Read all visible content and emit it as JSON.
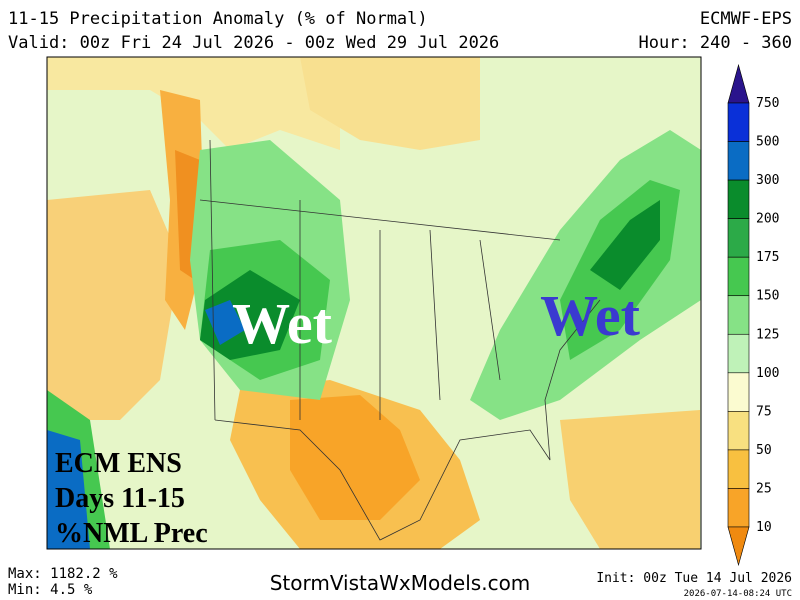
{
  "header": {
    "title": "11-15 Precipitation Anomaly (% of Normal)",
    "model": "ECMWF-EPS",
    "valid": "Valid: 00z Fri 24 Jul 2026 - 00z Wed 29 Jul 2026",
    "hour": "Hour: 240 - 360"
  },
  "legend": {
    "labels": [
      750,
      500,
      300,
      200,
      175,
      150,
      125,
      100,
      75,
      50,
      25,
      10
    ],
    "colors": [
      "#2a148c",
      "#0a30d8",
      "#0a6cc4",
      "#0a8c2c",
      "#2caa48",
      "#46c850",
      "#86e286",
      "#bff2b8",
      "#fbfbd0",
      "#f8e080",
      "#f8c040",
      "#f8a428",
      "#f08a10"
    ]
  },
  "map": {
    "annotations": [
      "Wet",
      "Wet"
    ],
    "box": [
      "ECM ENS",
      "Days 11-15",
      "%NML Prec"
    ]
  },
  "footer": {
    "max": "Max: 1182.2 %",
    "min": "Min: 4.5 %",
    "site": "StormVistaWxModels.com",
    "init": "Init: 00z Tue 14 Jul 2026",
    "timestamp": "2026-07-14-08:24 UTC"
  }
}
